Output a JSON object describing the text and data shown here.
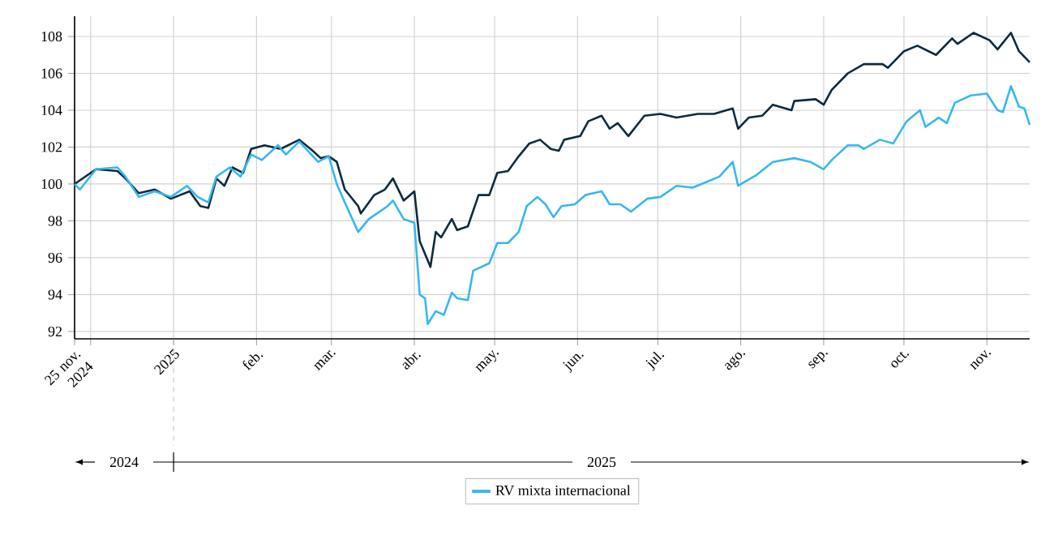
{
  "chart_data": {
    "type": "line",
    "grid": true,
    "legend": "bottom",
    "xlim": [
      "2024-11-25",
      "2025-11-17"
    ],
    "xticks": [
      {
        "value": "2024-11-25",
        "label": "25 nov. 2024"
      },
      {
        "value": "2024-12-01",
        "label": null
      },
      {
        "value": "2025-01-01",
        "label": "2025"
      },
      {
        "value": "2025-02-01",
        "label": "feb."
      },
      {
        "value": "2025-03-01",
        "label": "mar."
      },
      {
        "value": "2025-04-01",
        "label": "abr."
      },
      {
        "value": "2025-05-01",
        "label": "may."
      },
      {
        "value": "2025-06-01",
        "label": "jun."
      },
      {
        "value": "2025-07-01",
        "label": "jul."
      },
      {
        "value": "2025-08-01",
        "label": "ago."
      },
      {
        "value": "2025-09-01",
        "label": "sep."
      },
      {
        "value": "2025-10-01",
        "label": "oct."
      },
      {
        "value": "2025-11-01",
        "label": "nov."
      }
    ],
    "ylim": [
      91.6,
      109.1
    ],
    "yticks": [
      92,
      94,
      96,
      98,
      100,
      102,
      104,
      106,
      108
    ],
    "annotations": [
      "2024",
      "2025"
    ],
    "series": [
      {
        "color": "#0d2b3e",
        "x": [
          "2024-11-25",
          "2024-12-03",
          "2024-12-11",
          "2024-12-14",
          "2024-12-19",
          "2024-12-25",
          "2024-12-31",
          "2025-01-07",
          "2025-01-11",
          "2025-01-14",
          "2025-01-17",
          "2025-01-20",
          "2025-01-23",
          "2025-01-27",
          "2025-01-30",
          "2025-02-04",
          "2025-02-10",
          "2025-02-17",
          "2025-02-22",
          "2025-02-25",
          "2025-02-28",
          "2025-03-03",
          "2025-03-06",
          "2025-03-11",
          "2025-03-12",
          "2025-03-17",
          "2025-03-21",
          "2025-03-24",
          "2025-03-28",
          "2025-04-01",
          "2025-04-03",
          "2025-04-07",
          "2025-04-09",
          "2025-04-11",
          "2025-04-15",
          "2025-04-17",
          "2025-04-21",
          "2025-04-25",
          "2025-04-29",
          "2025-05-02",
          "2025-05-06",
          "2025-05-10",
          "2025-05-14",
          "2025-05-18",
          "2025-05-22",
          "2025-05-25",
          "2025-05-27",
          "2025-06-02",
          "2025-06-05",
          "2025-06-10",
          "2025-06-13",
          "2025-06-16",
          "2025-06-20",
          "2025-06-26",
          "2025-07-02",
          "2025-07-08",
          "2025-07-16",
          "2025-07-22",
          "2025-07-29",
          "2025-07-31",
          "2025-08-04",
          "2025-08-09",
          "2025-08-13",
          "2025-08-20",
          "2025-08-21",
          "2025-08-29",
          "2025-09-01",
          "2025-09-04",
          "2025-09-10",
          "2025-09-16",
          "2025-09-23",
          "2025-09-25",
          "2025-10-01",
          "2025-10-06",
          "2025-10-13",
          "2025-10-19",
          "2025-10-21",
          "2025-10-27",
          "2025-11-02",
          "2025-11-05",
          "2025-11-10",
          "2025-11-13",
          "2025-11-17"
        ],
        "values": [
          100.0,
          100.8,
          100.7,
          100.3,
          99.5,
          99.7,
          99.2,
          99.6,
          98.8,
          98.7,
          100.3,
          99.9,
          100.9,
          100.6,
          101.9,
          102.1,
          101.9,
          102.4,
          101.8,
          101.4,
          101.5,
          101.2,
          99.7,
          98.8,
          98.4,
          99.4,
          99.7,
          100.3,
          99.1,
          99.6,
          96.9,
          95.5,
          97.4,
          97.1,
          98.1,
          97.5,
          97.7,
          99.4,
          99.4,
          100.6,
          100.7,
          101.5,
          102.2,
          102.4,
          101.9,
          101.8,
          102.4,
          102.6,
          103.4,
          103.7,
          103.0,
          103.3,
          102.6,
          103.7,
          103.8,
          103.6,
          103.8,
          103.8,
          104.1,
          103.0,
          103.6,
          103.7,
          104.3,
          104.0,
          104.5,
          104.6,
          104.3,
          105.1,
          106.0,
          106.5,
          106.5,
          106.3,
          107.2,
          107.5,
          107.0,
          107.9,
          107.6,
          108.2,
          107.8,
          107.3,
          108.2,
          107.2,
          106.6
        ]
      },
      {
        "name": "RV mixta internacional",
        "color": "#36b8ee",
        "x": [
          "2024-11-25",
          "2024-11-27",
          "2024-12-03",
          "2024-12-11",
          "2024-12-14",
          "2024-12-19",
          "2024-12-25",
          "2024-12-31",
          "2025-01-06",
          "2025-01-10",
          "2025-01-14",
          "2025-01-17",
          "2025-01-22",
          "2025-01-26",
          "2025-01-30",
          "2025-02-03",
          "2025-02-09",
          "2025-02-12",
          "2025-02-17",
          "2025-02-24",
          "2025-02-28",
          "2025-03-03",
          "2025-03-06",
          "2025-03-11",
          "2025-03-15",
          "2025-03-18",
          "2025-03-22",
          "2025-03-24",
          "2025-03-28",
          "2025-04-01",
          "2025-04-03",
          "2025-04-05",
          "2025-04-06",
          "2025-04-09",
          "2025-04-12",
          "2025-04-15",
          "2025-04-17",
          "2025-04-21",
          "2025-04-23",
          "2025-04-29",
          "2025-05-02",
          "2025-05-06",
          "2025-05-10",
          "2025-05-13",
          "2025-05-17",
          "2025-05-20",
          "2025-05-23",
          "2025-05-26",
          "2025-05-31",
          "2025-06-04",
          "2025-06-10",
          "2025-06-13",
          "2025-06-17",
          "2025-06-21",
          "2025-06-27",
          "2025-07-02",
          "2025-07-08",
          "2025-07-14",
          "2025-07-19",
          "2025-07-24",
          "2025-07-29",
          "2025-07-31",
          "2025-08-07",
          "2025-08-13",
          "2025-08-21",
          "2025-08-27",
          "2025-09-01",
          "2025-09-04",
          "2025-09-10",
          "2025-09-14",
          "2025-09-16",
          "2025-09-22",
          "2025-09-27",
          "2025-10-02",
          "2025-10-07",
          "2025-10-09",
          "2025-10-14",
          "2025-10-17",
          "2025-10-20",
          "2025-10-26",
          "2025-11-01",
          "2025-11-05",
          "2025-11-07",
          "2025-11-10",
          "2025-11-13",
          "2025-11-15",
          "2025-11-17"
        ],
        "values": [
          100.0,
          99.7,
          100.8,
          100.9,
          100.4,
          99.3,
          99.6,
          99.3,
          99.9,
          99.3,
          99.0,
          100.4,
          100.9,
          100.4,
          101.6,
          101.3,
          102.1,
          101.6,
          102.3,
          101.2,
          101.5,
          100.0,
          99.0,
          97.4,
          98.1,
          98.4,
          98.8,
          99.1,
          98.1,
          97.9,
          94.0,
          93.8,
          92.4,
          93.1,
          92.9,
          94.1,
          93.8,
          93.7,
          95.3,
          95.7,
          96.8,
          96.8,
          97.4,
          98.8,
          99.3,
          98.9,
          98.2,
          98.8,
          98.9,
          99.4,
          99.6,
          98.9,
          98.9,
          98.5,
          99.2,
          99.3,
          99.9,
          99.8,
          100.1,
          100.4,
          101.2,
          99.9,
          100.5,
          101.2,
          101.4,
          101.2,
          100.8,
          101.3,
          102.1,
          102.1,
          101.9,
          102.4,
          102.2,
          103.4,
          104.0,
          103.1,
          103.6,
          103.3,
          104.4,
          104.8,
          104.9,
          104.0,
          103.9,
          105.3,
          104.2,
          104.1,
          103.2
        ]
      }
    ]
  }
}
